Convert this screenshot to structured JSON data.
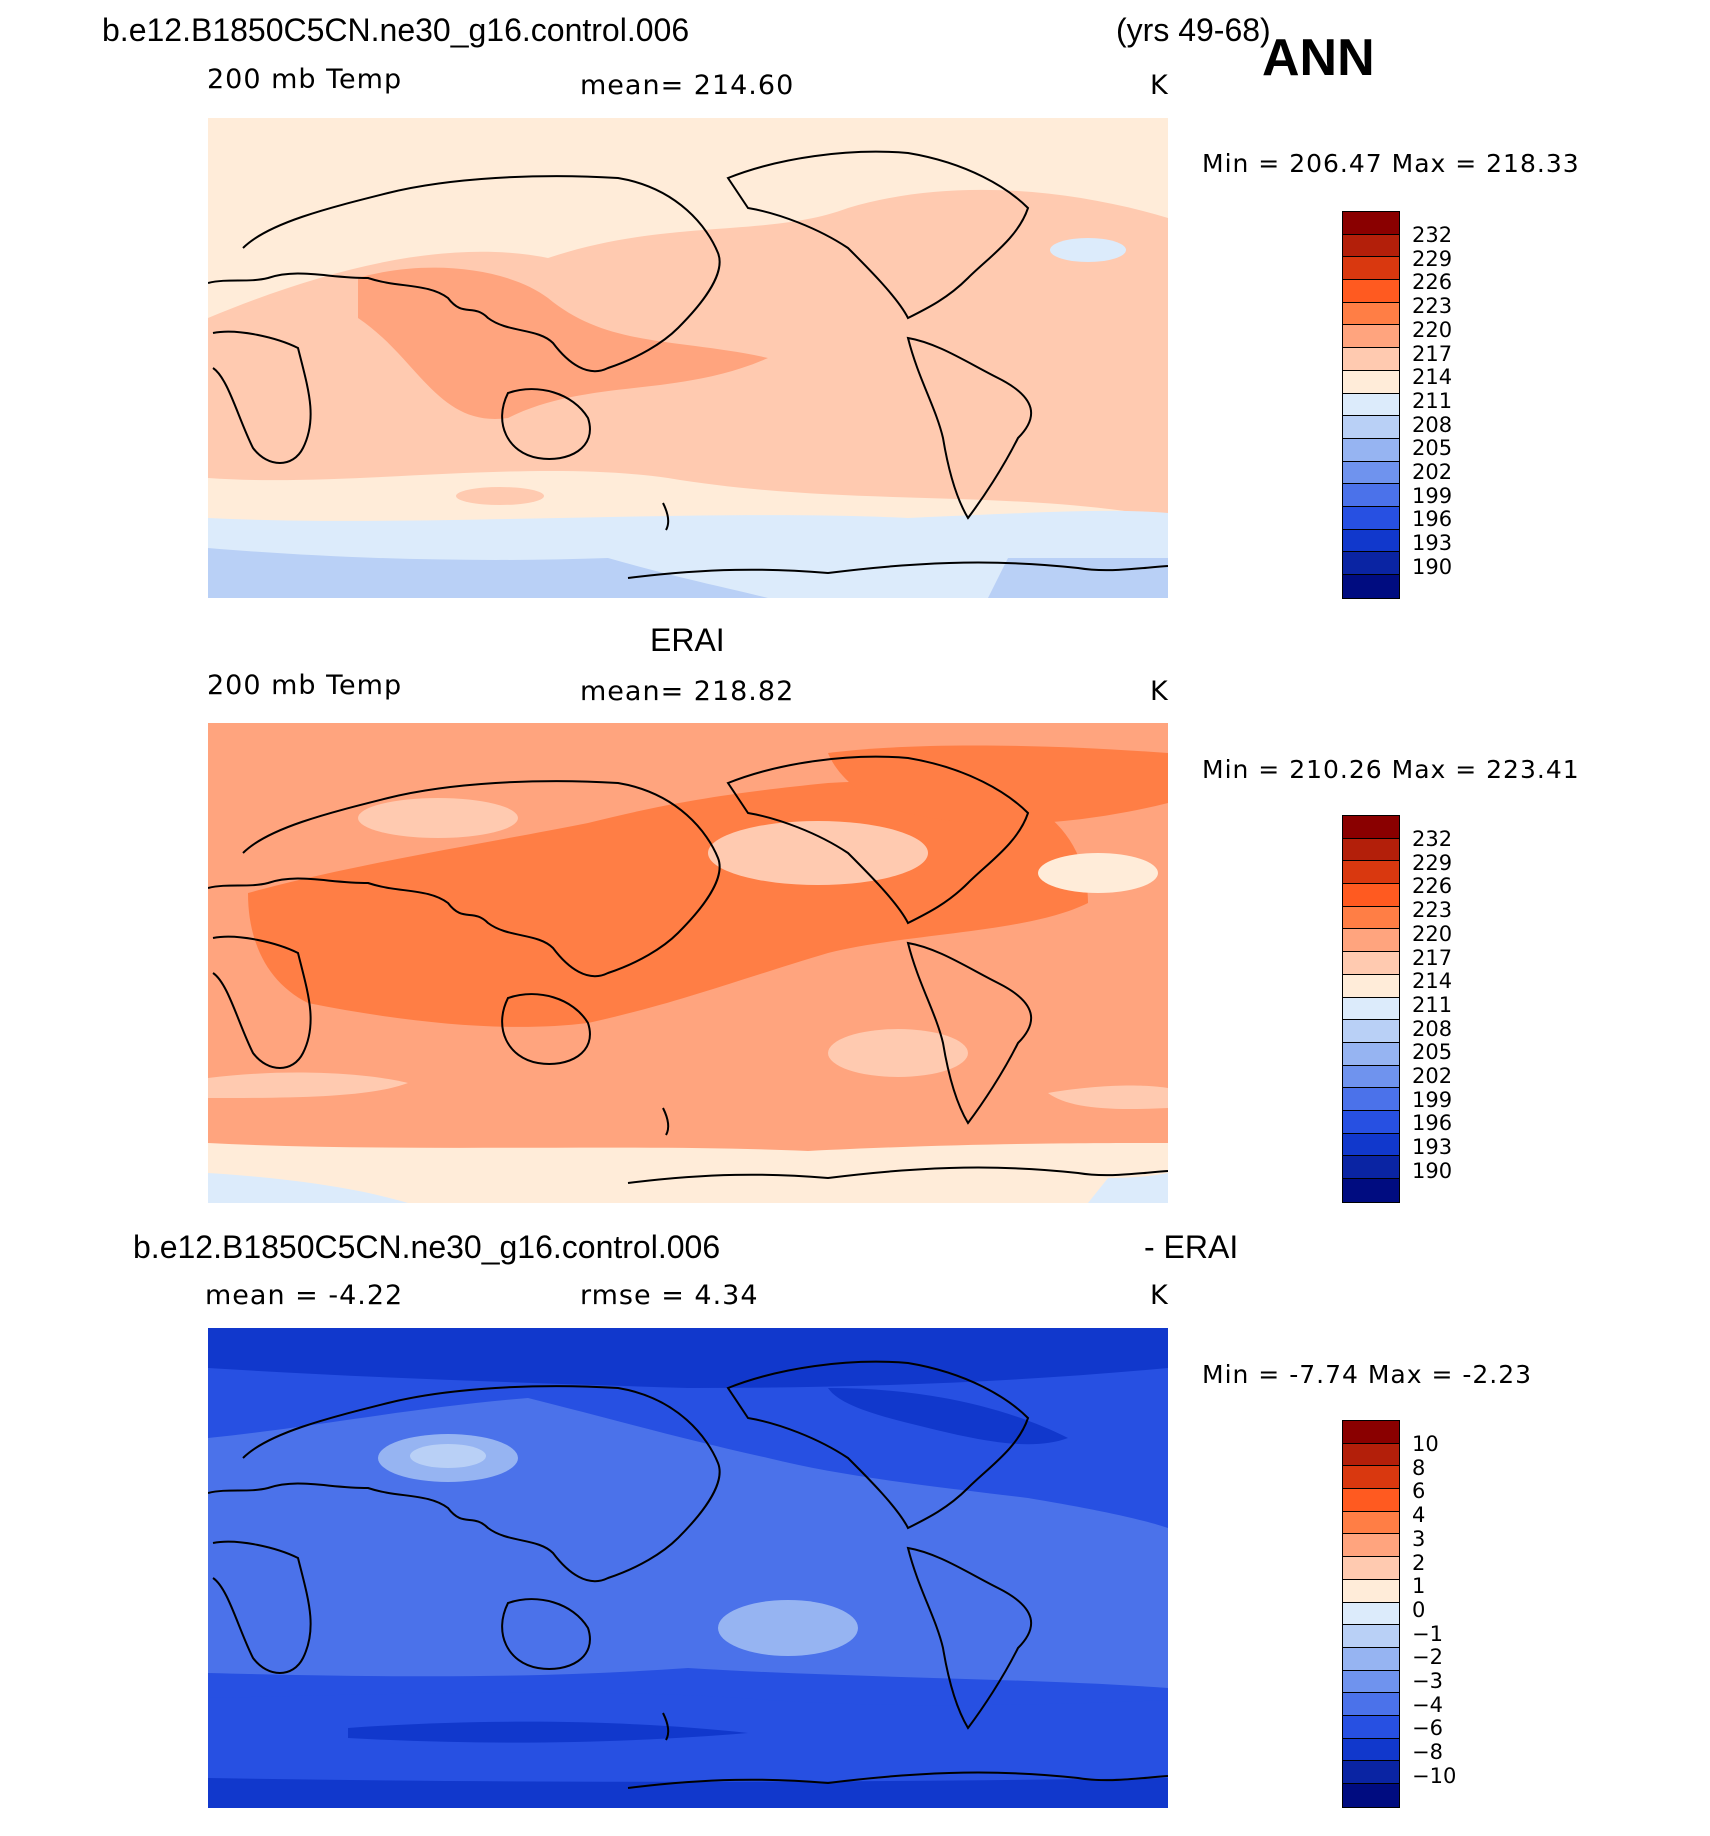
{
  "header": {
    "case_name": "b.e12.B1850C5CN.ne30_g16.control.006",
    "years": "(yrs 49-68)",
    "season": "ANN"
  },
  "panels": [
    {
      "id": "model",
      "title": "",
      "variable": "200 mb Temp",
      "stat": "mean=  214.60",
      "units": "K",
      "minmax": "Min  =  206.47  Max  =  218.33",
      "legend_colors": [
        "#8a0000",
        "#b31f0a",
        "#d9380f",
        "#ff5a20",
        "#ff7e45",
        "#ffa47e",
        "#ffcab0",
        "#ffecd9",
        "#dcebfb",
        "#b9d0f6",
        "#96b4f2",
        "#6f93ee",
        "#4b72ea",
        "#2750e2",
        "#1138cc",
        "#0a24a3",
        "#000c80"
      ],
      "legend_labels": [
        "232",
        "229",
        "226",
        "223",
        "220",
        "217",
        "214",
        "211",
        "208",
        "205",
        "202",
        "199",
        "196",
        "193",
        "190"
      ],
      "map_palette": [
        "#ffecd9",
        "#ffcab0",
        "#ffa47e",
        "#dcebfb",
        "#b9d0f6"
      ]
    },
    {
      "id": "obs",
      "title": "ERAI",
      "variable": "200 mb Temp",
      "stat": "mean=  218.82",
      "units": "K",
      "minmax": "Min  =  210.26  Max  =  223.41",
      "legend_colors": [
        "#8a0000",
        "#b31f0a",
        "#d9380f",
        "#ff5a20",
        "#ff7e45",
        "#ffa47e",
        "#ffcab0",
        "#ffecd9",
        "#dcebfb",
        "#b9d0f6",
        "#96b4f2",
        "#6f93ee",
        "#4b72ea",
        "#2750e2",
        "#1138cc",
        "#0a24a3",
        "#000c80"
      ],
      "legend_labels": [
        "232",
        "229",
        "226",
        "223",
        "220",
        "217",
        "214",
        "211",
        "208",
        "205",
        "202",
        "199",
        "196",
        "193",
        "190"
      ],
      "map_palette": [
        "#ffa47e",
        "#ff7e45",
        "#ffcab0",
        "#ffecd9",
        "#dcebfb"
      ]
    },
    {
      "id": "diff",
      "title_left": "b.e12.B1850C5CN.ne30_g16.control.006",
      "title_right": "- ERAI",
      "variable": "mean  =    -4.22",
      "stat": "rmse  =     4.34",
      "units": "K",
      "minmax": "Min  =    -7.74  Max  =    -2.23",
      "legend_colors": [
        "#8a0000",
        "#b31f0a",
        "#d9380f",
        "#ff5a20",
        "#ff7e45",
        "#ffa47e",
        "#ffcab0",
        "#ffecd9",
        "#dcebfb",
        "#b9d0f6",
        "#96b4f2",
        "#6f93ee",
        "#4b72ea",
        "#2750e2",
        "#1138cc",
        "#0a24a3",
        "#000c80"
      ],
      "legend_labels": [
        "10",
        "8",
        "6",
        "4",
        "3",
        "2",
        "1",
        "0",
        "-1",
        "-2",
        "-3",
        "-4",
        "-6",
        "-8",
        "-10"
      ],
      "map_palette": [
        "#2750e2",
        "#4b72ea",
        "#1138cc",
        "#96b4f2",
        "#b9d0f6"
      ]
    }
  ]
}
